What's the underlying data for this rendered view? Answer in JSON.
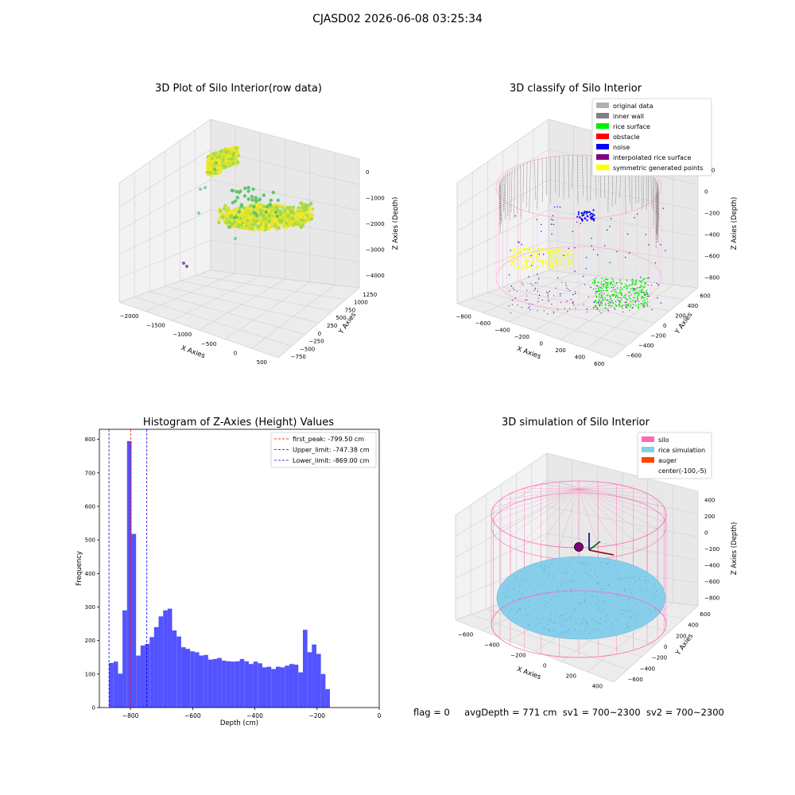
{
  "figure": {
    "suptitle": "CJASD02 2026-06-08 03:25:34",
    "footer": {
      "flag": "flag = 0",
      "avg_depth": "avgDepth = 771 cm",
      "sv1": "sv1 = 700~2300",
      "sv2": "sv2 = 700~2300"
    }
  },
  "chart_data": [
    {
      "type": "scatter",
      "projection": "3d",
      "title": "3D Plot of Silo Interior(row data)",
      "xlabel": "X Axies",
      "ylabel": "Y Axies",
      "zlabel": "Z Axies (Depth)",
      "x_ticks": [
        "−2000",
        "−1500",
        "−1000",
        "−500",
        "0",
        "500"
      ],
      "y_ticks": [
        "1250",
        "1000",
        "750",
        "500",
        "250",
        "0",
        "−250",
        "−500",
        "−750"
      ],
      "z_ticks": [
        "0",
        "−1000",
        "−2000",
        "−3000",
        "−4000"
      ],
      "colormap": [
        "#f2e830",
        "#d8e22a",
        "#9ad84b",
        "#5fc66a",
        "#35b779",
        "#8e5ba8"
      ]
    },
    {
      "type": "scatter",
      "projection": "3d",
      "title": "3D classify of Silo Interior",
      "xlabel": "X Axies",
      "ylabel": "Y Axies",
      "zlabel": "Z Axies (Depth)",
      "x_ticks": [
        "−800",
        "−600",
        "−400",
        "−200",
        "0",
        "200",
        "400",
        "600"
      ],
      "y_ticks": [
        "600",
        "400",
        "200",
        "0",
        "−200",
        "−400",
        "−600"
      ],
      "z_ticks": [
        "200",
        "0",
        "−200",
        "−400",
        "−600",
        "−800"
      ],
      "legend": [
        {
          "label": "original data",
          "color": "#b0b0b0"
        },
        {
          "label": "inner wall",
          "color": "#808080"
        },
        {
          "label": "rice surface",
          "color": "#00ee00"
        },
        {
          "label": "obstacle",
          "color": "#ff0000"
        },
        {
          "label": "noise",
          "color": "#0000ff"
        },
        {
          "label": "interpolated rice surface",
          "color": "#800080"
        },
        {
          "label": "symmetric generated points",
          "color": "#ffff00"
        }
      ]
    },
    {
      "type": "bar",
      "title": "Histogram of Z-Axies (Height) Values",
      "xlabel": "Depth (cm)",
      "ylabel": "Frequency",
      "xlim": [
        -900,
        0
      ],
      "ylim": [
        0,
        830
      ],
      "x_ticks": [
        -800,
        -600,
        -400,
        -200,
        0
      ],
      "y_ticks": [
        0,
        100,
        200,
        300,
        400,
        500,
        600,
        700,
        800
      ],
      "bar_color": "#4a4aff",
      "bins_start": -869,
      "bin_width": 14.5,
      "values": [
        133,
        137,
        101,
        290,
        795,
        518,
        155,
        185,
        190,
        210,
        240,
        272,
        290,
        295,
        230,
        212,
        180,
        175,
        168,
        165,
        155,
        157,
        143,
        145,
        148,
        140,
        138,
        137,
        138,
        145,
        138,
        130,
        137,
        132,
        120,
        122,
        115,
        122,
        120,
        125,
        130,
        128,
        105,
        232,
        165,
        188,
        160,
        100,
        55
      ],
      "vlines": [
        {
          "label": "first_peak: -799.50 cm",
          "x": -799.5,
          "color": "#ff0000"
        },
        {
          "label": "Upper_limit: -747.38 cm",
          "x": -747.38,
          "color": "#0000ff"
        },
        {
          "label": "Lower_limit: -869.00 cm",
          "x": -869.0,
          "color": "#0000ff"
        }
      ]
    },
    {
      "type": "scatter",
      "projection": "3d",
      "title": "3D simulation of Silo Interior",
      "xlabel": "X Axies",
      "ylabel": "Y Axies",
      "zlabel": "Z Axies (Depth)",
      "x_ticks": [
        "−600",
        "−400",
        "−200",
        "0",
        "200",
        "400"
      ],
      "y_ticks": [
        "600",
        "400",
        "200",
        "0",
        "−200",
        "−400",
        "−600"
      ],
      "z_ticks": [
        "400",
        "200",
        "0",
        "−200",
        "−400",
        "−600",
        "−800"
      ],
      "legend": [
        {
          "label": "silo",
          "color": "#ff69b4"
        },
        {
          "label": "rice simulation",
          "color": "#87ceeb"
        },
        {
          "label": "auger",
          "color": "#ff4500"
        },
        {
          "label": "center(-100,-5)",
          "color": ""
        }
      ]
    }
  ]
}
